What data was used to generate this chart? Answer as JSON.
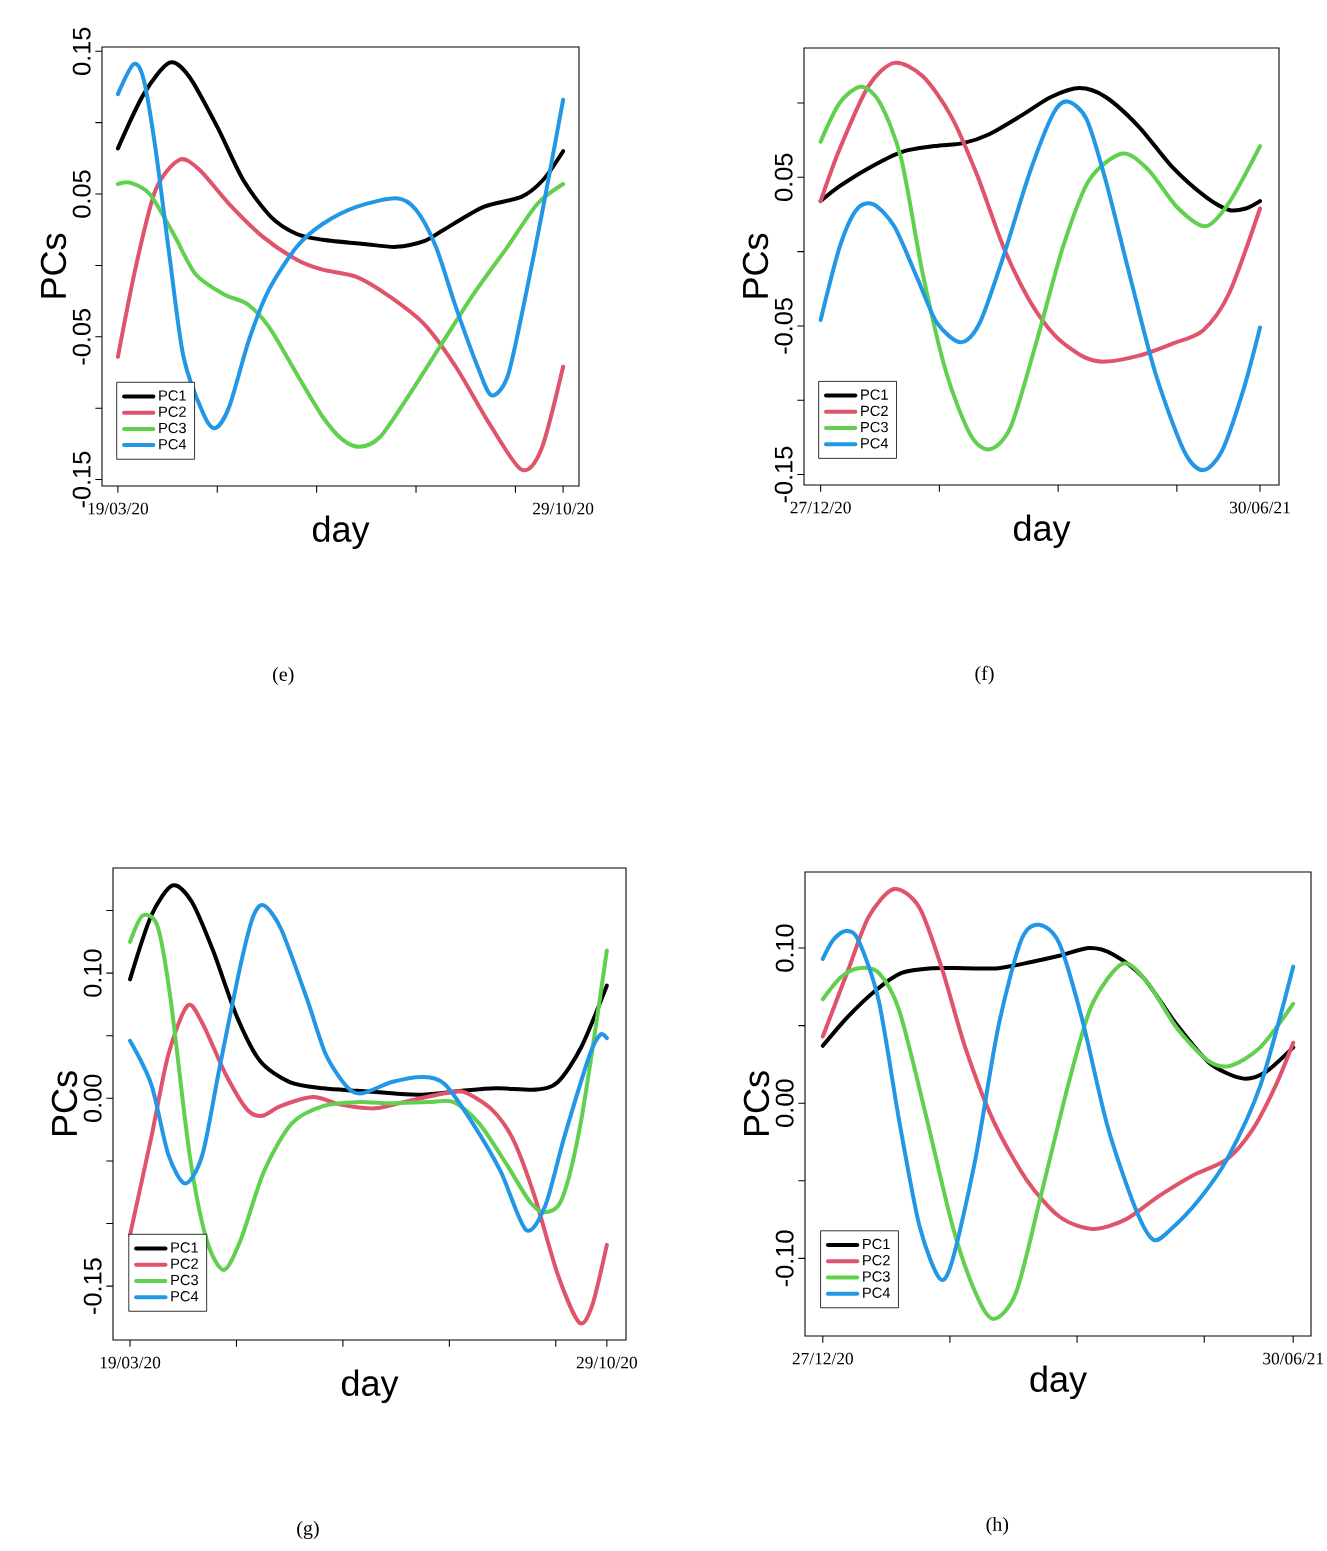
{
  "chart_data": [
    {
      "type": "line",
      "xlabel": "day",
      "ylabel": "PCs",
      "legend": "bottom left",
      "annotations": [
        "(e)"
      ],
      "xlim": [
        "2020-03-11",
        "2020-11-06"
      ],
      "ylim": [
        -0.1545,
        0.153
      ],
      "xticks": [
        {
          "value": "2020-03-19",
          "label": "19/03/20"
        },
        {
          "value": "2020-05-08",
          "label": null
        },
        {
          "value": "2020-06-27",
          "label": null
        },
        {
          "value": "2020-08-16",
          "label": null
        },
        {
          "value": "2020-10-05",
          "label": null
        },
        {
          "value": "2020-10-29",
          "label": "29/10/20"
        }
      ],
      "yticks": [
        {
          "value": 0.15,
          "label": "0.15"
        },
        {
          "value": 0.1,
          "label": null
        },
        {
          "value": 0.05,
          "label": "0.05"
        },
        {
          "value": 0.0,
          "label": null
        },
        {
          "value": -0.05,
          "label": "-0.05"
        },
        {
          "value": -0.1,
          "label": null
        },
        {
          "value": -0.15,
          "label": "-0.15"
        }
      ],
      "series": [
        {
          "name": "PC1",
          "color": "#000000",
          "x": [
            "2020-03-19",
            "2020-04-01",
            "2020-04-14",
            "2020-04-24",
            "2020-05-08",
            "2020-05-21",
            "2020-06-04",
            "2020-06-17",
            "2020-06-30",
            "2020-07-21",
            "2020-08-06",
            "2020-08-20",
            "2020-08-30",
            "2020-09-19",
            "2020-10-08",
            "2020-10-19",
            "2020-10-29"
          ],
          "values": [
            0.082,
            0.12,
            0.142,
            0.132,
            0.097,
            0.06,
            0.034,
            0.022,
            0.018,
            0.015,
            0.013,
            0.017,
            0.025,
            0.041,
            0.048,
            0.06,
            0.08
          ]
        },
        {
          "name": "PC2",
          "color": "#df536b",
          "x": [
            "2020-03-19",
            "2020-03-28",
            "2020-04-07",
            "2020-04-19",
            "2020-04-29",
            "2020-05-14",
            "2020-05-31",
            "2020-06-17",
            "2020-06-30",
            "2020-07-17",
            "2020-08-03",
            "2020-08-20",
            "2020-09-05",
            "2020-09-22",
            "2020-10-08",
            "2020-10-18",
            "2020-10-29"
          ],
          "values": [
            -0.064,
            -0.001,
            0.053,
            0.074,
            0.067,
            0.043,
            0.02,
            0.004,
            -0.003,
            -0.008,
            -0.022,
            -0.041,
            -0.071,
            -0.111,
            -0.143,
            -0.129,
            -0.071
          ]
        },
        {
          "name": "PC3",
          "color": "#61d04f",
          "x": [
            "2020-03-19",
            "2020-03-25",
            "2020-04-04",
            "2020-04-16",
            "2020-04-27",
            "2020-05-11",
            "2020-05-23",
            "2020-06-03",
            "2020-06-17",
            "2020-06-30",
            "2020-07-10",
            "2020-07-19",
            "2020-07-29",
            "2020-08-11",
            "2020-08-28",
            "2020-09-14",
            "2020-10-01",
            "2020-10-16",
            "2020-10-29"
          ],
          "values": [
            0.057,
            0.058,
            0.05,
            0.022,
            -0.006,
            -0.02,
            -0.027,
            -0.043,
            -0.076,
            -0.106,
            -0.122,
            -0.127,
            -0.12,
            -0.094,
            -0.057,
            -0.02,
            0.013,
            0.043,
            0.057
          ]
        },
        {
          "name": "PC4",
          "color": "#2297e6",
          "x": [
            "2020-03-19",
            "2020-03-27",
            "2020-04-01",
            "2020-04-07",
            "2020-04-14",
            "2020-04-21",
            "2020-05-01",
            "2020-05-07",
            "2020-05-14",
            "2020-05-24",
            "2020-06-03",
            "2020-06-17",
            "2020-06-30",
            "2020-07-17",
            "2020-08-06",
            "2020-08-16",
            "2020-08-26",
            "2020-09-05",
            "2020-09-16",
            "2020-09-23",
            "2020-10-01",
            "2020-10-09",
            "2020-10-19",
            "2020-10-29"
          ],
          "values": [
            0.12,
            0.141,
            0.13,
            0.081,
            0.006,
            -0.064,
            -0.104,
            -0.114,
            -0.099,
            -0.052,
            -0.017,
            0.013,
            0.029,
            0.041,
            0.047,
            0.039,
            0.013,
            -0.029,
            -0.071,
            -0.091,
            -0.078,
            -0.029,
            0.041,
            0.116
          ]
        }
      ]
    },
    {
      "type": "line",
      "xlabel": "day",
      "ylabel": "PCs",
      "legend": "bottom left",
      "annotations": [
        "(f)"
      ],
      "xlim": [
        "2020-12-20",
        "2021-07-08"
      ],
      "ylim": [
        -0.157,
        0.137
      ],
      "xticks": [
        {
          "value": "2020-12-27",
          "label": "27/12/20"
        },
        {
          "value": "2021-02-15",
          "label": null
        },
        {
          "value": "2021-04-06",
          "label": null
        },
        {
          "value": "2021-05-26",
          "label": null
        },
        {
          "value": "2021-06-30",
          "label": "30/06/21"
        }
      ],
      "yticks": [
        {
          "value": 0.1,
          "label": null
        },
        {
          "value": 0.05,
          "label": "0.05"
        },
        {
          "value": 0.0,
          "label": null
        },
        {
          "value": -0.05,
          "label": "-0.05"
        },
        {
          "value": -0.1,
          "label": null
        },
        {
          "value": -0.15,
          "label": "-0.15"
        }
      ],
      "series": [
        {
          "name": "PC1",
          "color": "#000000",
          "x": [
            "2020-12-27",
            "2021-01-04",
            "2021-01-16",
            "2021-01-30",
            "2021-02-13",
            "2021-02-25",
            "2021-03-08",
            "2021-03-22",
            "2021-04-03",
            "2021-04-15",
            "2021-04-26",
            "2021-05-10",
            "2021-05-24",
            "2021-06-07",
            "2021-06-17",
            "2021-06-24",
            "2021-06-30"
          ],
          "values": [
            0.034,
            0.044,
            0.056,
            0.067,
            0.071,
            0.073,
            0.079,
            0.092,
            0.104,
            0.11,
            0.104,
            0.084,
            0.057,
            0.037,
            0.028,
            0.029,
            0.034
          ]
        },
        {
          "name": "PC2",
          "color": "#df536b",
          "x": [
            "2020-12-27",
            "2021-01-04",
            "2021-01-16",
            "2021-01-27",
            "2021-02-08",
            "2021-02-20",
            "2021-03-03",
            "2021-03-14",
            "2021-03-25",
            "2021-04-05",
            "2021-04-17",
            "2021-04-26",
            "2021-05-10",
            "2021-05-24",
            "2021-06-06",
            "2021-06-17",
            "2021-06-30"
          ],
          "values": [
            0.034,
            0.069,
            0.111,
            0.127,
            0.118,
            0.091,
            0.051,
            0.003,
            -0.033,
            -0.057,
            -0.071,
            -0.074,
            -0.07,
            -0.062,
            -0.053,
            -0.028,
            0.029
          ]
        },
        {
          "name": "PC3",
          "color": "#61d04f",
          "x": [
            "2020-12-27",
            "2021-01-04",
            "2021-01-13",
            "2021-01-21",
            "2021-01-30",
            "2021-02-08",
            "2021-02-18",
            "2021-02-28",
            "2021-03-08",
            "2021-03-17",
            "2021-03-28",
            "2021-04-08",
            "2021-04-19",
            "2021-05-03",
            "2021-05-14",
            "2021-05-26",
            "2021-06-07",
            "2021-06-17",
            "2021-06-30"
          ],
          "values": [
            0.074,
            0.1,
            0.111,
            0.1,
            0.062,
            -0.015,
            -0.082,
            -0.123,
            -0.133,
            -0.118,
            -0.06,
            0.003,
            0.048,
            0.066,
            0.055,
            0.03,
            0.017,
            0.033,
            0.071
          ]
        },
        {
          "name": "PC4",
          "color": "#2297e6",
          "x": [
            "2020-12-27",
            "2021-01-04",
            "2021-01-11",
            "2021-01-18",
            "2021-01-27",
            "2021-02-06",
            "2021-02-14",
            "2021-02-24",
            "2021-03-04",
            "2021-03-14",
            "2021-03-25",
            "2021-04-04",
            "2021-04-10",
            "2021-04-18",
            "2021-04-26",
            "2021-05-06",
            "2021-05-17",
            "2021-05-29",
            "2021-06-06",
            "2021-06-14",
            "2021-06-23",
            "2021-06-30"
          ],
          "values": [
            -0.046,
            0.003,
            0.028,
            0.032,
            0.017,
            -0.019,
            -0.048,
            -0.061,
            -0.048,
            -0.003,
            0.053,
            0.093,
            0.101,
            0.089,
            0.048,
            -0.015,
            -0.082,
            -0.134,
            -0.147,
            -0.134,
            -0.093,
            -0.051
          ]
        }
      ]
    },
    {
      "type": "line",
      "xlabel": "day",
      "ylabel": "PCs",
      "legend": "bottom left",
      "annotations": [
        "(g)"
      ],
      "xlim": [
        "2020-03-11",
        "2020-11-07"
      ],
      "ylim": [
        -0.193,
        0.184
      ],
      "xticks": [
        {
          "value": "2020-03-19",
          "label": "19/03/20"
        },
        {
          "value": "2020-05-08",
          "label": null
        },
        {
          "value": "2020-06-27",
          "label": null
        },
        {
          "value": "2020-08-16",
          "label": null
        },
        {
          "value": "2020-10-05",
          "label": null
        },
        {
          "value": "2020-10-29",
          "label": "29/10/20"
        }
      ],
      "yticks": [
        {
          "value": 0.15,
          "label": null
        },
        {
          "value": 0.1,
          "label": "0.10"
        },
        {
          "value": 0.05,
          "label": null
        },
        {
          "value": 0.0,
          "label": "0.00"
        },
        {
          "value": -0.05,
          "label": null
        },
        {
          "value": -0.1,
          "label": null
        },
        {
          "value": -0.15,
          "label": "-0.15"
        }
      ],
      "series": [
        {
          "name": "PC1",
          "color": "#000000",
          "x": [
            "2020-03-19",
            "2020-03-29",
            "2020-04-08",
            "2020-04-17",
            "2020-04-27",
            "2020-05-08",
            "2020-05-19",
            "2020-06-02",
            "2020-06-18",
            "2020-07-04",
            "2020-07-20",
            "2020-08-05",
            "2020-08-22",
            "2020-09-07",
            "2020-09-26",
            "2020-10-06",
            "2020-10-17",
            "2020-10-29"
          ],
          "values": [
            0.095,
            0.146,
            0.17,
            0.157,
            0.118,
            0.066,
            0.03,
            0.013,
            0.008,
            0.006,
            0.004,
            0.003,
            0.006,
            0.008,
            0.007,
            0.013,
            0.041,
            0.09
          ]
        },
        {
          "name": "PC2",
          "color": "#df536b",
          "x": [
            "2020-03-19",
            "2020-03-29",
            "2020-04-06",
            "2020-04-15",
            "2020-04-22",
            "2020-05-03",
            "2020-05-13",
            "2020-05-20",
            "2020-05-29",
            "2020-06-13",
            "2020-06-26",
            "2020-07-12",
            "2020-07-28",
            "2020-08-14",
            "2020-08-23",
            "2020-09-05",
            "2020-09-15",
            "2020-09-25",
            "2020-10-06",
            "2020-10-16",
            "2020-10-22",
            "2020-10-29"
          ],
          "values": [
            -0.109,
            -0.031,
            0.035,
            0.074,
            0.06,
            0.019,
            -0.009,
            -0.014,
            -0.006,
            0.001,
            -0.005,
            -0.008,
            -0.002,
            0.004,
            0.005,
            -0.009,
            -0.033,
            -0.078,
            -0.141,
            -0.179,
            -0.166,
            -0.117
          ]
        },
        {
          "name": "PC3",
          "color": "#61d04f",
          "x": [
            "2020-03-19",
            "2020-03-25",
            "2020-04-01",
            "2020-04-07",
            "2020-04-16",
            "2020-04-24",
            "2020-05-02",
            "2020-05-10",
            "2020-05-21",
            "2020-06-03",
            "2020-06-18",
            "2020-07-04",
            "2020-07-20",
            "2020-08-06",
            "2020-08-18",
            "2020-08-30",
            "2020-09-12",
            "2020-09-23",
            "2020-09-30",
            "2020-10-08",
            "2020-10-17",
            "2020-10-29"
          ],
          "values": [
            0.125,
            0.146,
            0.137,
            0.08,
            -0.045,
            -0.113,
            -0.137,
            -0.113,
            -0.058,
            -0.02,
            -0.006,
            -0.003,
            -0.004,
            -0.003,
            -0.003,
            -0.02,
            -0.053,
            -0.083,
            -0.091,
            -0.08,
            -0.017,
            0.118
          ]
        },
        {
          "name": "PC4",
          "color": "#2297e6",
          "x": [
            "2020-03-19",
            "2020-03-29",
            "2020-04-06",
            "2020-04-14",
            "2020-04-22",
            "2020-04-30",
            "2020-05-10",
            "2020-05-16",
            "2020-05-21",
            "2020-05-29",
            "2020-06-10",
            "2020-06-19",
            "2020-06-29",
            "2020-07-06",
            "2020-07-20",
            "2020-08-04",
            "2020-08-14",
            "2020-08-27",
            "2020-09-09",
            "2020-09-21",
            "2020-09-30",
            "2020-10-09",
            "2020-10-21",
            "2020-10-26",
            "2020-10-29"
          ],
          "values": [
            0.046,
            0.011,
            -0.045,
            -0.068,
            -0.045,
            0.024,
            0.107,
            0.146,
            0.154,
            0.135,
            0.08,
            0.035,
            0.009,
            0.004,
            0.013,
            0.017,
            0.011,
            -0.02,
            -0.058,
            -0.105,
            -0.086,
            -0.031,
            0.035,
            0.051,
            0.048
          ]
        }
      ]
    },
    {
      "type": "line",
      "xlabel": "day",
      "ylabel": "PCs",
      "legend": "bottom left",
      "annotations": [
        "(h)"
      ],
      "xlim": [
        "2020-12-20",
        "2021-07-07"
      ],
      "ylim": [
        -0.15,
        0.149
      ],
      "xticks": [
        {
          "value": "2020-12-27",
          "label": "27/12/20"
        },
        {
          "value": "2021-02-15",
          "label": null
        },
        {
          "value": "2021-04-06",
          "label": null
        },
        {
          "value": "2021-05-26",
          "label": null
        },
        {
          "value": "2021-06-30",
          "label": "30/06/21"
        }
      ],
      "yticks": [
        {
          "value": 0.1,
          "label": "0.10"
        },
        {
          "value": 0.05,
          "label": null
        },
        {
          "value": 0.0,
          "label": "0.00"
        },
        {
          "value": -0.05,
          "label": null
        },
        {
          "value": -0.1,
          "label": "-0.10"
        }
      ],
      "series": [
        {
          "name": "PC1",
          "color": "#000000",
          "x": [
            "2020-12-27",
            "2021-01-06",
            "2021-01-17",
            "2021-01-27",
            "2021-02-08",
            "2021-02-21",
            "2021-03-06",
            "2021-03-19",
            "2021-03-30",
            "2021-04-11",
            "2021-04-20",
            "2021-05-02",
            "2021-05-15",
            "2021-05-28",
            "2021-06-10",
            "2021-06-19",
            "2021-06-30"
          ],
          "values": [
            0.037,
            0.056,
            0.073,
            0.084,
            0.087,
            0.087,
            0.087,
            0.091,
            0.095,
            0.1,
            0.096,
            0.081,
            0.051,
            0.026,
            0.016,
            0.02,
            0.036
          ]
        },
        {
          "name": "PC2",
          "color": "#df536b",
          "x": [
            "2020-12-27",
            "2021-01-06",
            "2021-01-14",
            "2021-01-24",
            "2021-02-03",
            "2021-02-12",
            "2021-02-21",
            "2021-03-04",
            "2021-03-17",
            "2021-03-30",
            "2021-04-12",
            "2021-04-25",
            "2021-05-08",
            "2021-05-21",
            "2021-06-04",
            "2021-06-14",
            "2021-06-23",
            "2021-06-30"
          ],
          "values": [
            0.043,
            0.086,
            0.12,
            0.138,
            0.126,
            0.086,
            0.036,
            -0.011,
            -0.049,
            -0.073,
            -0.081,
            -0.075,
            -0.06,
            -0.047,
            -0.036,
            -0.017,
            0.011,
            0.039
          ]
        },
        {
          "name": "PC3",
          "color": "#61d04f",
          "x": [
            "2020-12-27",
            "2021-01-03",
            "2021-01-10",
            "2021-01-18",
            "2021-01-26",
            "2021-02-05",
            "2021-02-16",
            "2021-02-25",
            "2021-03-04",
            "2021-03-13",
            "2021-03-23",
            "2021-04-03",
            "2021-04-12",
            "2021-04-24",
            "2021-05-04",
            "2021-05-15",
            "2021-05-27",
            "2021-06-05",
            "2021-06-17",
            "2021-06-30"
          ],
          "values": [
            0.067,
            0.081,
            0.087,
            0.084,
            0.06,
            -0.004,
            -0.079,
            -0.122,
            -0.139,
            -0.122,
            -0.058,
            0.015,
            0.064,
            0.09,
            0.077,
            0.049,
            0.028,
            0.024,
            0.036,
            0.064
          ]
        },
        {
          "name": "PC4",
          "color": "#2297e6",
          "x": [
            "2020-12-27",
            "2020-12-31",
            "2021-01-05",
            "2021-01-10",
            "2021-01-18",
            "2021-01-26",
            "2021-02-03",
            "2021-02-11",
            "2021-02-16",
            "2021-02-25",
            "2021-03-06",
            "2021-03-15",
            "2021-03-22",
            "2021-03-30",
            "2021-04-08",
            "2021-04-18",
            "2021-04-29",
            "2021-05-06",
            "2021-05-13",
            "2021-05-24",
            "2021-06-04",
            "2021-06-17",
            "2021-06-30"
          ],
          "values": [
            0.093,
            0.105,
            0.111,
            0.105,
            0.066,
            -0.011,
            -0.079,
            -0.113,
            -0.101,
            -0.036,
            0.049,
            0.105,
            0.115,
            0.103,
            0.054,
            -0.015,
            -0.068,
            -0.088,
            -0.081,
            -0.062,
            -0.036,
            0.011,
            0.088
          ]
        }
      ]
    }
  ]
}
